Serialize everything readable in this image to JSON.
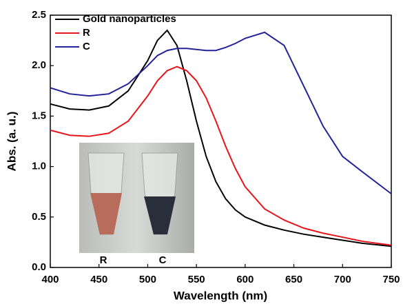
{
  "chart_data": {
    "type": "line",
    "xlabel": "Wavelength (nm)",
    "ylabel": "Abs. (a. u.)",
    "x": [
      400,
      420,
      440,
      460,
      480,
      500,
      510,
      520,
      530,
      540,
      550,
      560,
      570,
      580,
      590,
      600,
      620,
      640,
      660,
      680,
      700,
      720,
      750
    ],
    "series": [
      {
        "name": "Gold nanoparticles",
        "color": "#000000",
        "values": [
          1.62,
          1.57,
          1.56,
          1.6,
          1.75,
          2.05,
          2.25,
          2.35,
          2.2,
          1.85,
          1.45,
          1.1,
          0.85,
          0.68,
          0.57,
          0.5,
          0.42,
          0.37,
          0.33,
          0.3,
          0.27,
          0.24,
          0.21
        ]
      },
      {
        "name": "R",
        "color": "#e8141c",
        "values": [
          1.36,
          1.31,
          1.3,
          1.33,
          1.45,
          1.7,
          1.85,
          1.95,
          1.99,
          1.95,
          1.85,
          1.68,
          1.45,
          1.2,
          0.98,
          0.8,
          0.58,
          0.47,
          0.39,
          0.34,
          0.3,
          0.26,
          0.22
        ]
      },
      {
        "name": "C",
        "color": "#22229a",
        "values": [
          1.78,
          1.72,
          1.7,
          1.72,
          1.82,
          2.0,
          2.1,
          2.15,
          2.17,
          2.17,
          2.16,
          2.15,
          2.15,
          2.18,
          2.22,
          2.27,
          2.33,
          2.2,
          1.8,
          1.4,
          1.1,
          0.95,
          0.73
        ]
      }
    ],
    "xlim": [
      400,
      750
    ],
    "xticks": [
      400,
      450,
      500,
      550,
      600,
      650,
      700,
      750
    ],
    "ylim": [
      0,
      2.5
    ],
    "yticks": [
      {
        "value": 0,
        "label": "0.0"
      },
      0.5,
      {
        "value": 1,
        "label": "1.0"
      },
      1.5,
      {
        "value": 2,
        "label": "2.0"
      },
      2.5
    ],
    "inset_labels": [
      "R",
      "C"
    ]
  }
}
